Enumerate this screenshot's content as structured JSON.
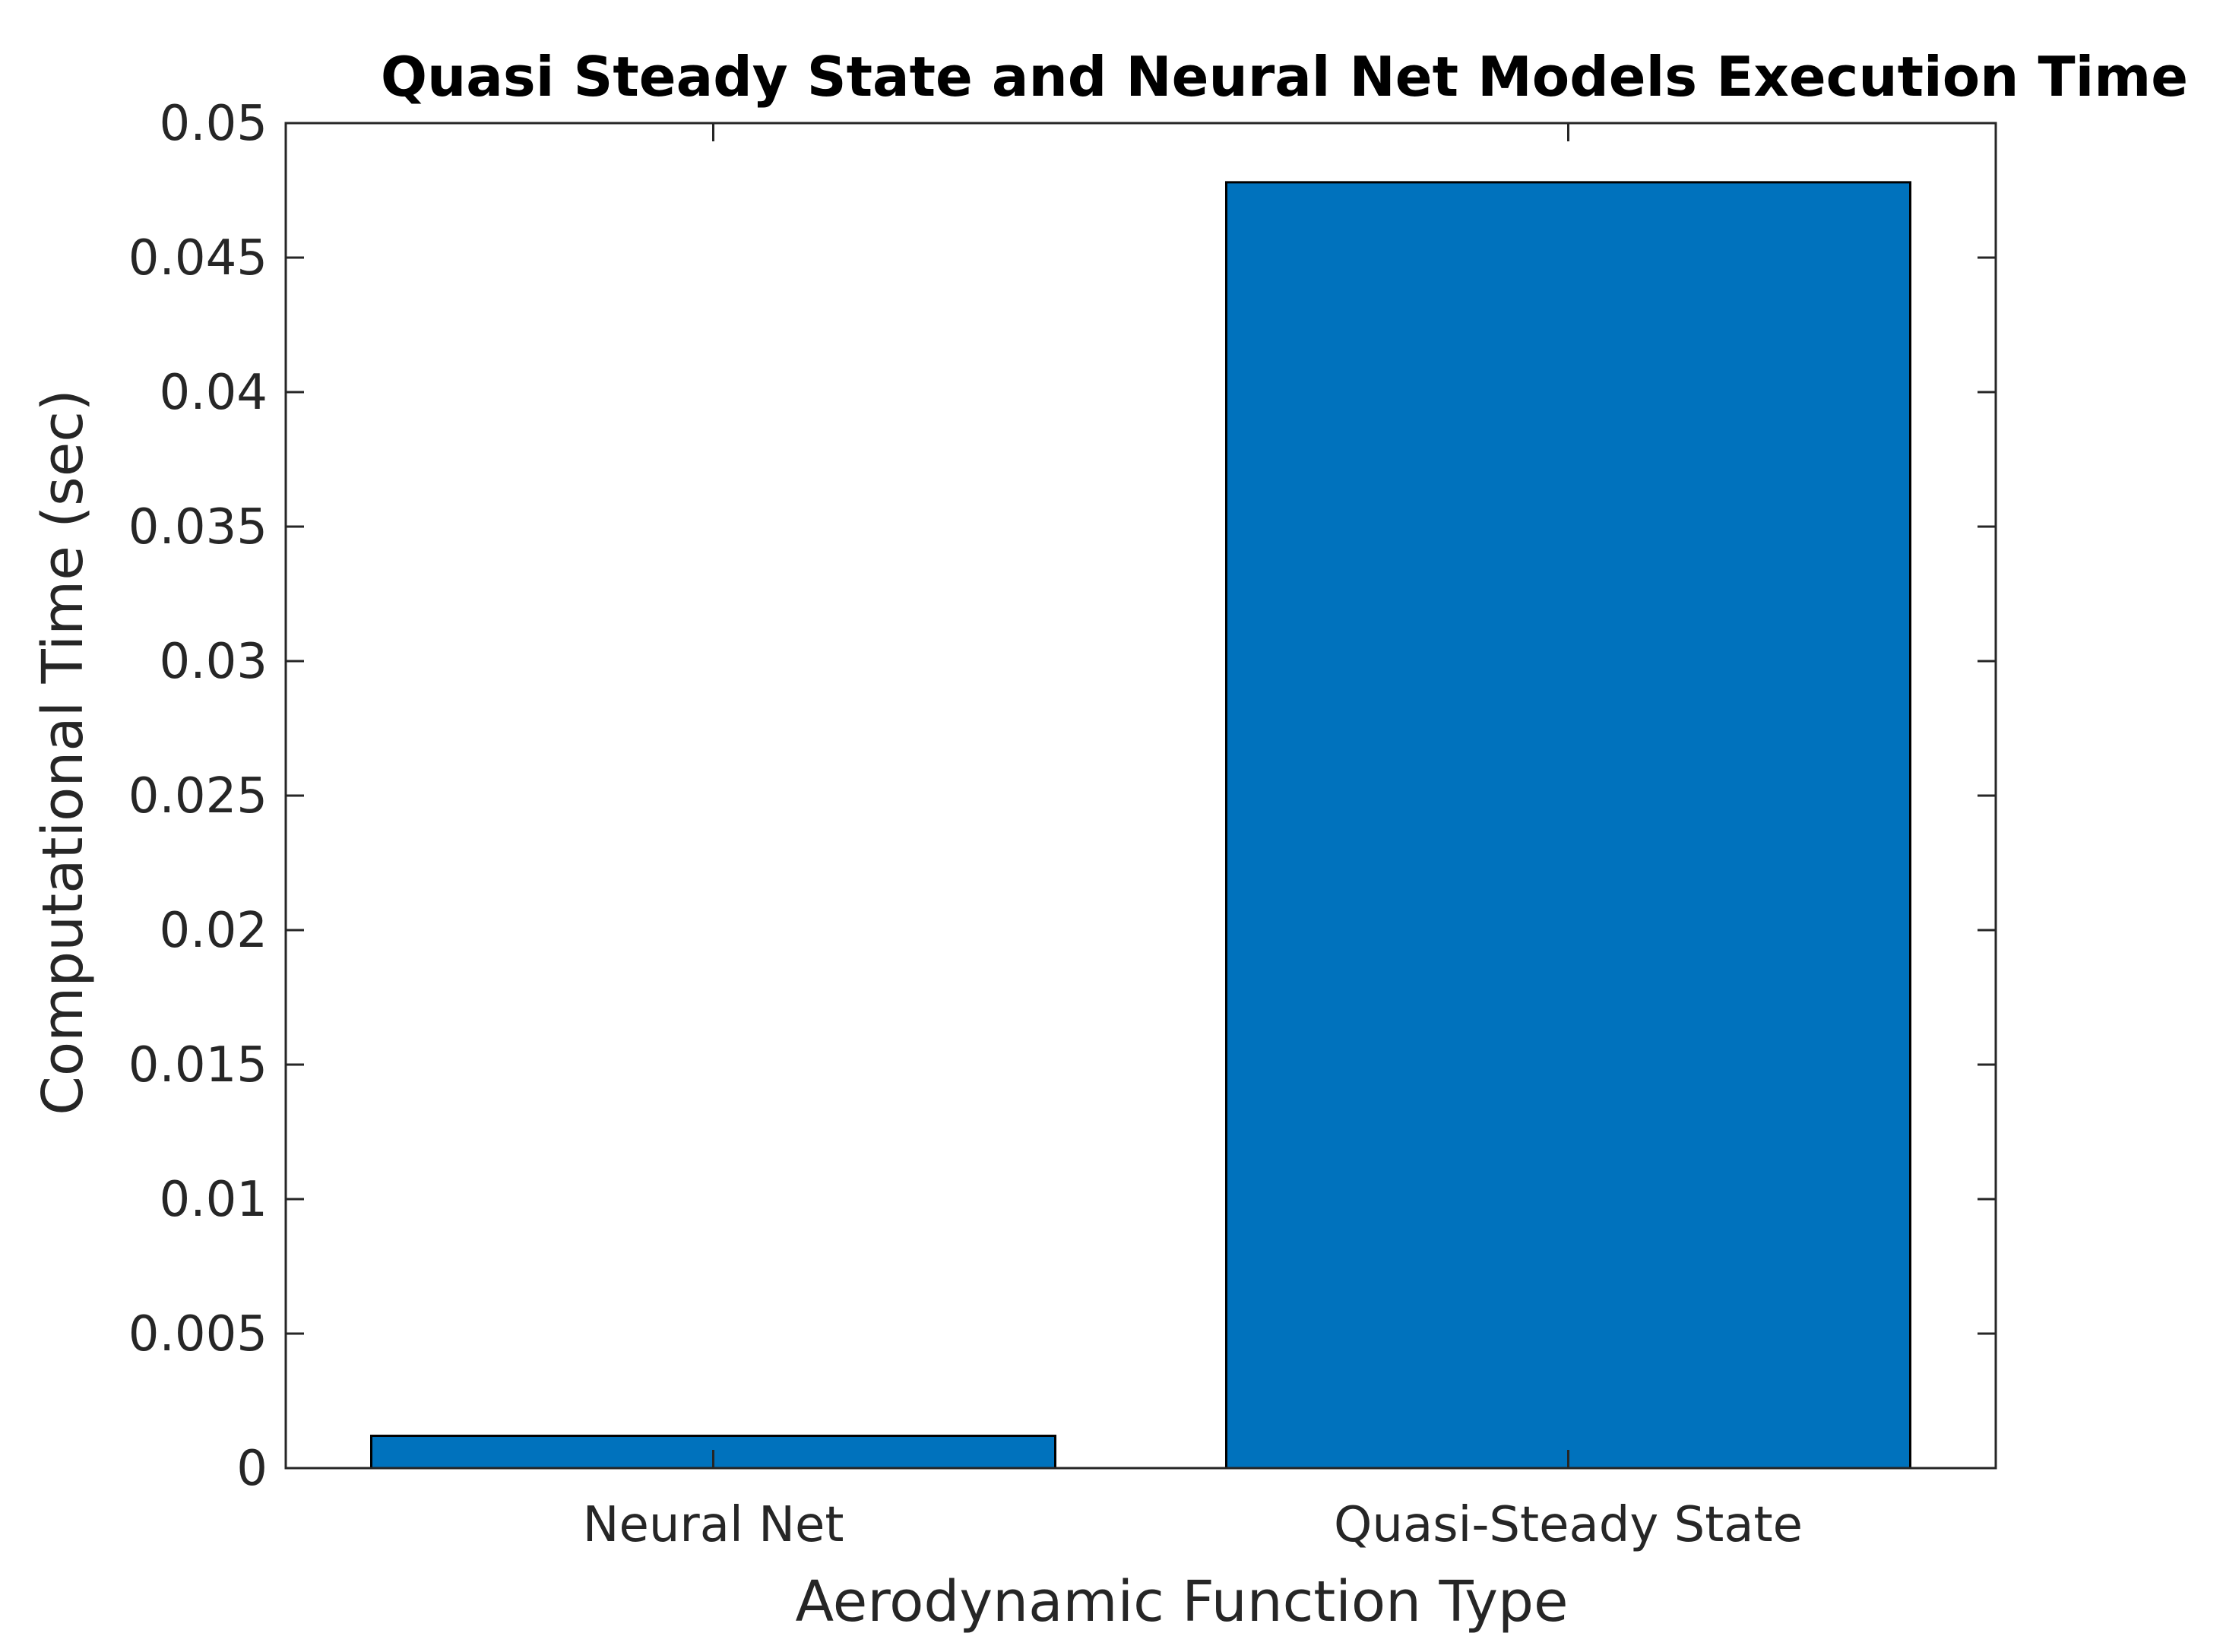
{
  "chart_data": {
    "type": "bar",
    "title": "Quasi Steady State and Neural Net Models Execution Time",
    "xlabel": "Aerodynamic Function Type",
    "ylabel": "Computational Time (sec)",
    "categories": [
      "Neural Net",
      "Quasi-Steady State"
    ],
    "values": [
      0.0012,
      0.0478
    ],
    "ylim": [
      0,
      0.05
    ],
    "yticks": [
      0,
      0.005,
      0.01,
      0.015,
      0.02,
      0.025,
      0.03,
      0.035,
      0.04,
      0.045,
      0.05
    ],
    "ytick_labels": [
      "0",
      "0.005",
      "0.01",
      "0.015",
      "0.02",
      "0.025",
      "0.03",
      "0.035",
      "0.04",
      "0.045",
      "0.05"
    ],
    "bar_color": "#0072BD",
    "grid": false,
    "legend": false
  }
}
